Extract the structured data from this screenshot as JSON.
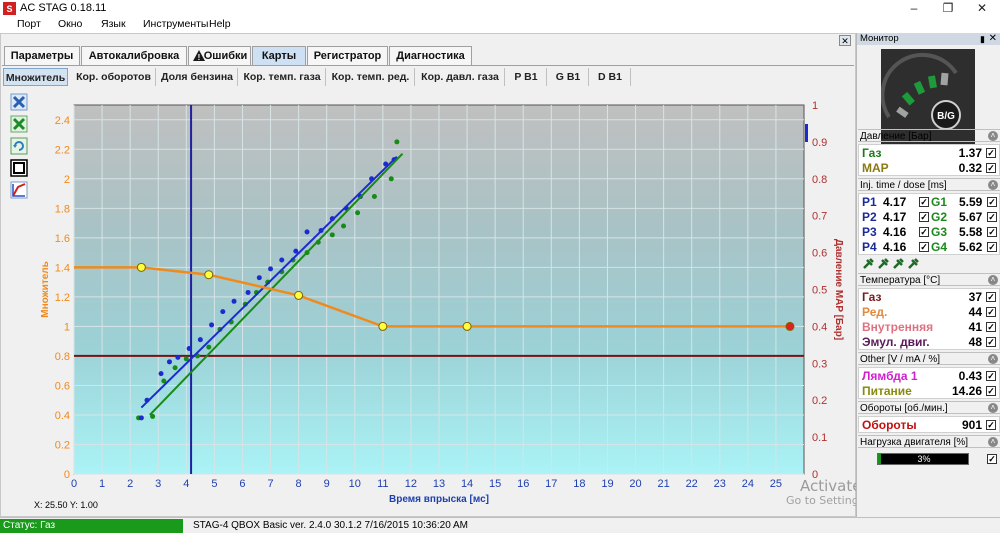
{
  "window": {
    "title": "AC STAG 0.18.11"
  },
  "menu": [
    "Порт",
    "Окно",
    "Язык",
    "Инструменты",
    "Help"
  ],
  "tabs": [
    {
      "label": "Параметры"
    },
    {
      "label": "Автокалибровка"
    },
    {
      "label": "Ошибки",
      "icon": "warning-icon"
    },
    {
      "label": "Карты",
      "active": true
    },
    {
      "label": "Регистратор"
    },
    {
      "label": "Диагностика"
    }
  ],
  "subtabs": [
    {
      "label": "Множитель",
      "active": true
    },
    {
      "label": "Кор. оборотов"
    },
    {
      "label": "Доля бензина"
    },
    {
      "label": "Кор. темп. газа"
    },
    {
      "label": "Кор. темп. ред."
    },
    {
      "label": "Кор. давл. газа"
    },
    {
      "label": "P B1"
    },
    {
      "label": "G B1"
    },
    {
      "label": "D B1"
    }
  ],
  "tools": [
    "delete-blue-icon",
    "delete-green-icon",
    "refresh-icon",
    "select-rect-icon",
    "fit-line-icon"
  ],
  "chart_data": {
    "type": "line",
    "xlabel": "Время впрыска [мс]",
    "ylabel_left": "Множитель",
    "ylabel_right": "Давление MAP [Бар]",
    "xlim": [
      0,
      26
    ],
    "ylim_left": [
      0,
      2.5
    ],
    "ylim_right": [
      0,
      1
    ],
    "x_ticks": [
      0,
      1,
      2,
      3,
      4,
      5,
      6,
      7,
      8,
      9,
      10,
      11,
      12,
      13,
      14,
      15,
      16,
      17,
      18,
      19,
      20,
      21,
      22,
      23,
      24,
      25
    ],
    "y_ticks_left": [
      "0",
      "0.2",
      "0.4",
      "0.6",
      "0.8",
      "1",
      "1.2",
      "1.4",
      "1.6",
      "1.8",
      "2",
      "2.2",
      "2.4"
    ],
    "y_ticks_right": [
      "0",
      "0.1",
      "0.2",
      "0.3",
      "0.4",
      "0.5",
      "0.6",
      "0.7",
      "0.8",
      "0.9",
      "1"
    ],
    "grid": true,
    "map_pressure_line": 0.32,
    "cursor_x": 4.17,
    "multiplier_curve": {
      "color": "#f08a1c",
      "x": [
        0,
        2.4,
        4.8,
        8.0,
        11.0,
        14.0,
        25.5
      ],
      "y": [
        1.4,
        1.4,
        1.35,
        1.21,
        1.0,
        1.0,
        1.0
      ]
    },
    "fit_blue": {
      "color": "#1c2bd0",
      "x": [
        2.4,
        11.5
      ],
      "y": [
        0.45,
        2.15
      ]
    },
    "fit_green": {
      "color": "#178a17",
      "x": [
        2.7,
        11.7
      ],
      "y": [
        0.4,
        2.17
      ]
    },
    "scatter_blue": {
      "x": [
        2.4,
        2.6,
        3.1,
        3.4,
        3.7,
        4.1,
        4.5,
        4.9,
        5.3,
        5.7,
        6.2,
        6.6,
        7.0,
        7.4,
        7.9,
        8.3,
        8.8,
        9.2,
        9.7,
        10.2,
        10.6,
        11.1,
        11.4
      ],
      "y": [
        0.38,
        0.5,
        0.68,
        0.76,
        0.79,
        0.85,
        0.91,
        1.01,
        1.1,
        1.17,
        1.23,
        1.33,
        1.39,
        1.45,
        1.51,
        1.64,
        1.65,
        1.73,
        1.8,
        1.88,
        2.0,
        2.1,
        2.13
      ]
    },
    "scatter_green": {
      "x": [
        2.3,
        2.8,
        3.2,
        3.6,
        4.0,
        4.4,
        4.8,
        5.2,
        5.6,
        6.1,
        6.5,
        6.9,
        7.4,
        7.8,
        8.3,
        8.7,
        9.2,
        9.6,
        10.1,
        10.7,
        11.3,
        11.5
      ],
      "y": [
        0.38,
        0.39,
        0.63,
        0.72,
        0.78,
        0.8,
        0.86,
        0.98,
        1.03,
        1.15,
        1.23,
        1.3,
        1.37,
        1.45,
        1.5,
        1.57,
        1.62,
        1.68,
        1.77,
        1.88,
        2.0,
        2.25
      ]
    }
  },
  "coord_text": "X: 25.50  Y: 1.00",
  "status": {
    "text": "Статус: Газ",
    "device": "STAG-4 QBOX Basic  ver. 2.4.0  30.1.2   7/16/2015 10:36:20 AM"
  },
  "watermark": {
    "line1": "Activate Windows",
    "line2": "Go to Settings to activate Windows."
  },
  "monitor": {
    "title": "Монитор",
    "gauge_label": "B/G",
    "pressure": {
      "header": "Давление [Бар]",
      "rows": [
        {
          "name": "Газ",
          "value": "1.37",
          "color": "#1a7a1a"
        },
        {
          "name": "MAP",
          "value": "0.32",
          "color": "#8a7a10"
        }
      ]
    },
    "injection": {
      "header": "Inj. time / dose [ms]",
      "rows": [
        {
          "p": "P1",
          "pv": "4.17",
          "g": "G1",
          "gv": "5.59"
        },
        {
          "p": "P2",
          "pv": "4.17",
          "g": "G2",
          "gv": "5.67"
        },
        {
          "p": "P3",
          "pv": "4.16",
          "g": "G3",
          "gv": "5.58"
        },
        {
          "p": "P4",
          "pv": "4.16",
          "g": "G4",
          "gv": "5.62"
        }
      ]
    },
    "temperature": {
      "header": "Температура [°C]",
      "rows": [
        {
          "name": "Газ",
          "value": "37",
          "color": "#7a1a1a"
        },
        {
          "name": "Ред.",
          "value": "44",
          "color": "#e08a40"
        },
        {
          "name": "Внутренняя",
          "value": "41",
          "color": "#e07080"
        },
        {
          "name": "Эмул. двиг.",
          "value": "48",
          "color": "#5a1a5a"
        }
      ]
    },
    "other": {
      "header": "Other [V / mA / %]",
      "rows": [
        {
          "name": "Лямбда 1",
          "value": "0.43",
          "color": "#d020d0"
        },
        {
          "name": "Питание",
          "value": "14.26",
          "color": "#8a8a10"
        }
      ]
    },
    "rpm": {
      "header": "Обороты [об./мин.]",
      "rows": [
        {
          "name": "Обороты",
          "value": "901",
          "color": "#c01010"
        }
      ]
    },
    "load": {
      "header": "Нагрузка двигателя [%]",
      "value": "3%",
      "fraction": 0.03
    }
  }
}
